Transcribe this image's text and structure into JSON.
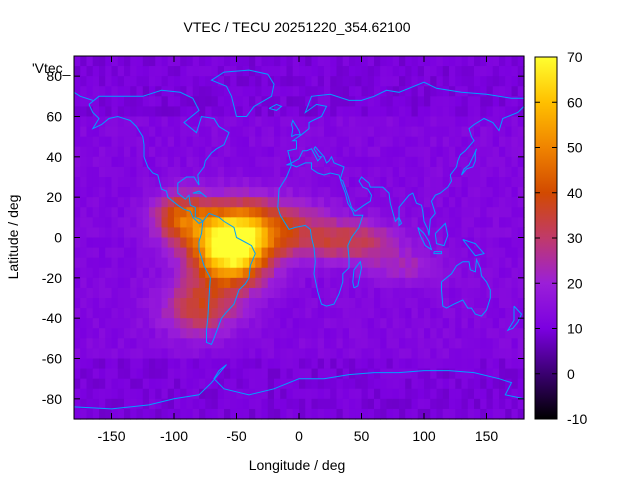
{
  "chart_data": {
    "type": "heatmap",
    "title": "VTEC / TECU 20251220_354.62100",
    "xlabel": "Longitude / deg",
    "ylabel": "Latitude / deg",
    "xlim": [
      -180,
      180
    ],
    "ylim": [
      -90,
      90
    ],
    "x_ticks": [
      -150,
      -100,
      -50,
      0,
      50,
      100,
      150
    ],
    "y_ticks": [
      -80,
      -60,
      -40,
      -20,
      0,
      20,
      40,
      60,
      80
    ],
    "colorbar": {
      "range": [
        -10,
        70
      ],
      "ticks": [
        -10,
        0,
        10,
        20,
        30,
        40,
        50,
        60,
        70
      ],
      "palette": [
        "#000000",
        "#3a0070",
        "#7b00e0",
        "#9b1fd8",
        "#c03a6a",
        "#d24a00",
        "#f08400",
        "#ffc000",
        "#ffff30"
      ]
    },
    "legend_key": "'Vtec_",
    "grid": false,
    "background_level": 12,
    "enhancements": [
      {
        "lon": -55,
        "lat": -5,
        "peak": 62,
        "slon": 30,
        "slat": 18
      },
      {
        "lon": -25,
        "lat": 5,
        "peak": 22,
        "slon": 45,
        "slat": 14
      },
      {
        "lon": -95,
        "lat": 10,
        "peak": 28,
        "slon": 22,
        "slat": 12
      },
      {
        "lon": -80,
        "lat": -35,
        "peak": 22,
        "slon": 30,
        "slat": 14
      },
      {
        "lon": 40,
        "lat": -2,
        "peak": 20,
        "slon": 40,
        "slat": 10
      },
      {
        "lon": 85,
        "lat": -15,
        "peak": 10,
        "slon": 30,
        "slat": 8
      }
    ],
    "coastline_color": "#00a0ff"
  }
}
